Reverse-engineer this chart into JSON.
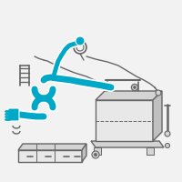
{
  "bg": "#f2f2f2",
  "cable_color": "#00a8c8",
  "line_color": "#666666",
  "fill_light": "#e8e8e8",
  "fill_mid": "#d4d4d4",
  "fill_dark": "#c0c0c0",
  "fig_w": 2.0,
  "fig_h": 2.0,
  "dpi": 100,
  "cable_lw": 5.0,
  "thin_lw": 1.0
}
